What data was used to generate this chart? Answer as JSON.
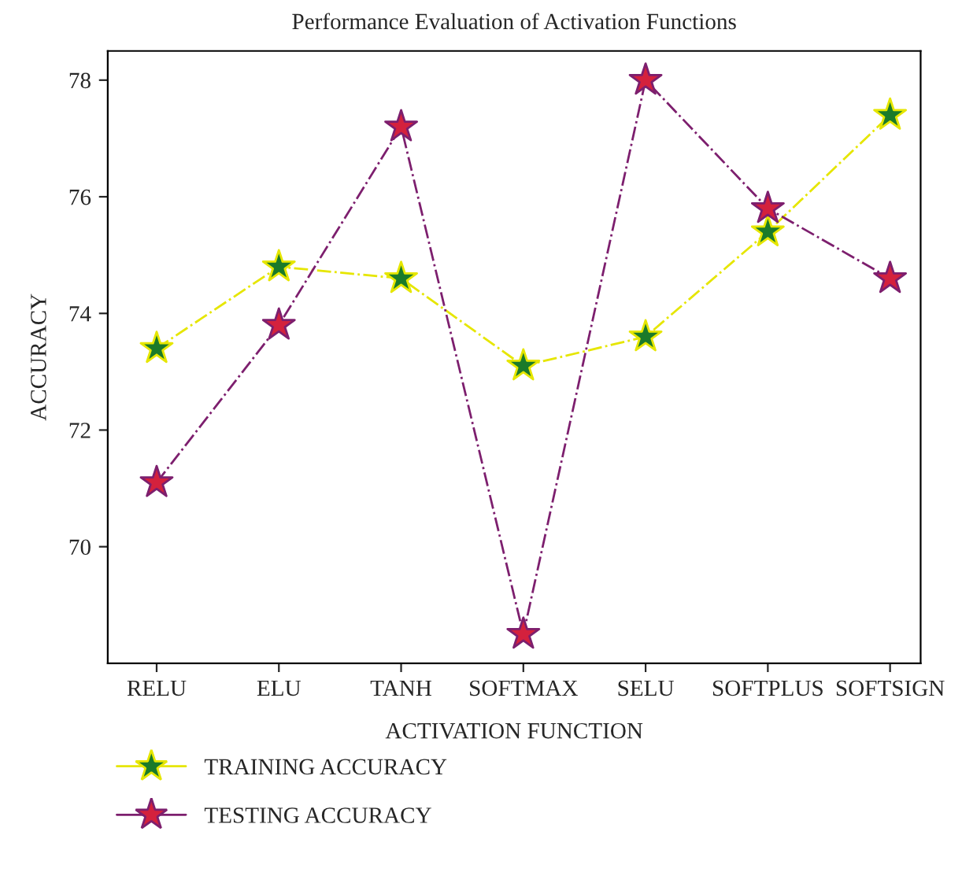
{
  "chart_data": {
    "type": "line",
    "title": "Performance Evaluation of Activation Functions",
    "xlabel": "ACTIVATION FUNCTION",
    "ylabel": "ACCURACY",
    "categories": [
      "RELU",
      "ELU",
      "TANH",
      "SOFTMAX",
      "SELU",
      "SOFTPLUS",
      "SOFTSIGN"
    ],
    "series": [
      {
        "name": "TRAINING ACCURACY",
        "color": "#e6e600",
        "colors": [
          "#1a7a2a",
          "#1a7a2a",
          "#1a7a2a",
          "#1a7a2a",
          "#1a7a2a",
          "#1a7a2a",
          "#1a7a2a"
        ],
        "values": [
          73.4,
          74.8,
          74.6,
          73.1,
          73.6,
          75.4,
          77.4
        ]
      },
      {
        "name": "TESTING ACCURACY",
        "color": "#7d1f6e",
        "colors": [
          "#d4213d",
          "#d4213d",
          "#d4213d",
          "#d4213d",
          "#d4213d",
          "#d4213d",
          "#d4213d"
        ],
        "values": [
          71.1,
          73.8,
          77.2,
          68.5,
          78.0,
          75.8,
          74.6
        ]
      }
    ],
    "ylim": [
      68,
      78.5
    ],
    "yticks": [
      70,
      72,
      74,
      76,
      78
    ],
    "grid": false,
    "legend": "bottom",
    "marker": "star",
    "line_style": "dashdot"
  }
}
